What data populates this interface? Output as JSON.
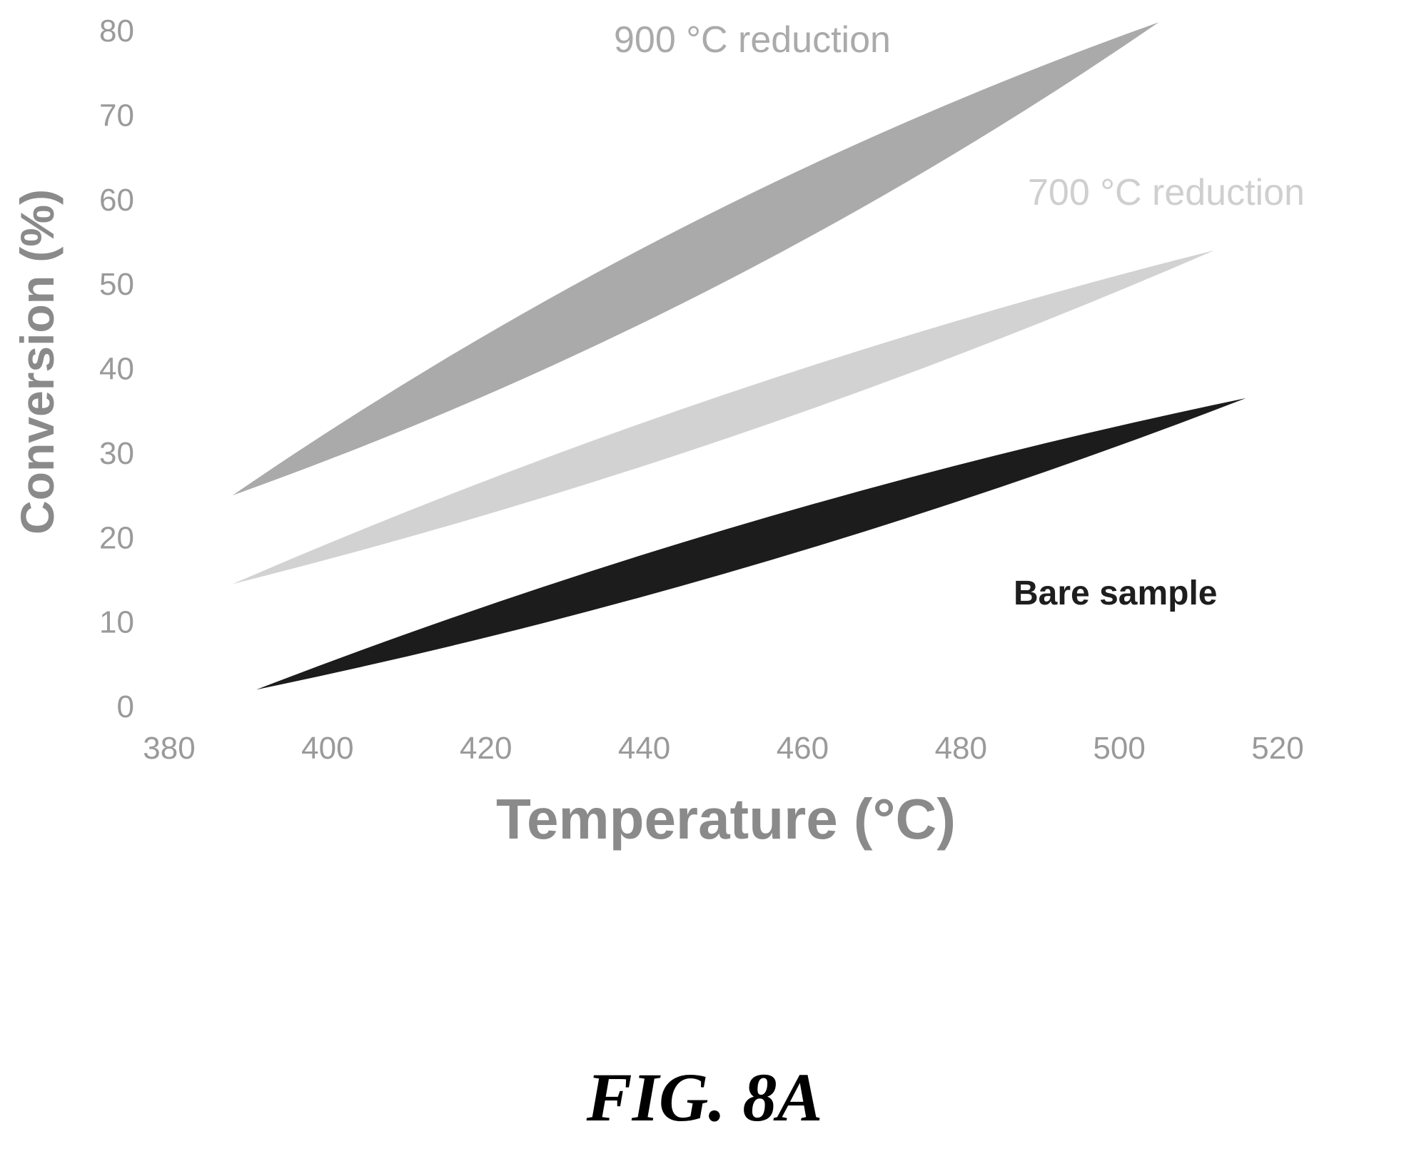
{
  "figure": {
    "caption": "FIG. 8A"
  },
  "chart_data": {
    "type": "area",
    "xlabel": "Temperature (°C)",
    "ylabel": "Conversion (%)",
    "xlim": [
      380,
      520
    ],
    "ylim": [
      0,
      80
    ],
    "xticks": [
      380,
      400,
      420,
      440,
      460,
      480,
      500,
      520
    ],
    "yticks": [
      0,
      10,
      20,
      30,
      40,
      50,
      60,
      70,
      80
    ],
    "grid": false,
    "legend": "none",
    "series": [
      {
        "name": "900 °C reduction",
        "color": "#aaaaaa",
        "label_color": "#aaaaaa",
        "start": [
          388,
          25
        ],
        "end": [
          505,
          81
        ],
        "band_half_width": 4
      },
      {
        "name": "700 °C reduction",
        "color": "#d2d2d2",
        "label_color": "#cfcfcf",
        "start": [
          388,
          14.5
        ],
        "end": [
          512,
          54
        ],
        "band_half_width": 2.5
      },
      {
        "name": "Bare sample",
        "color": "#1c1c1c",
        "label_color": "#1e1e1e",
        "start": [
          391,
          2
        ],
        "end": [
          516,
          36.5
        ],
        "band_half_width": 2.5
      }
    ]
  }
}
